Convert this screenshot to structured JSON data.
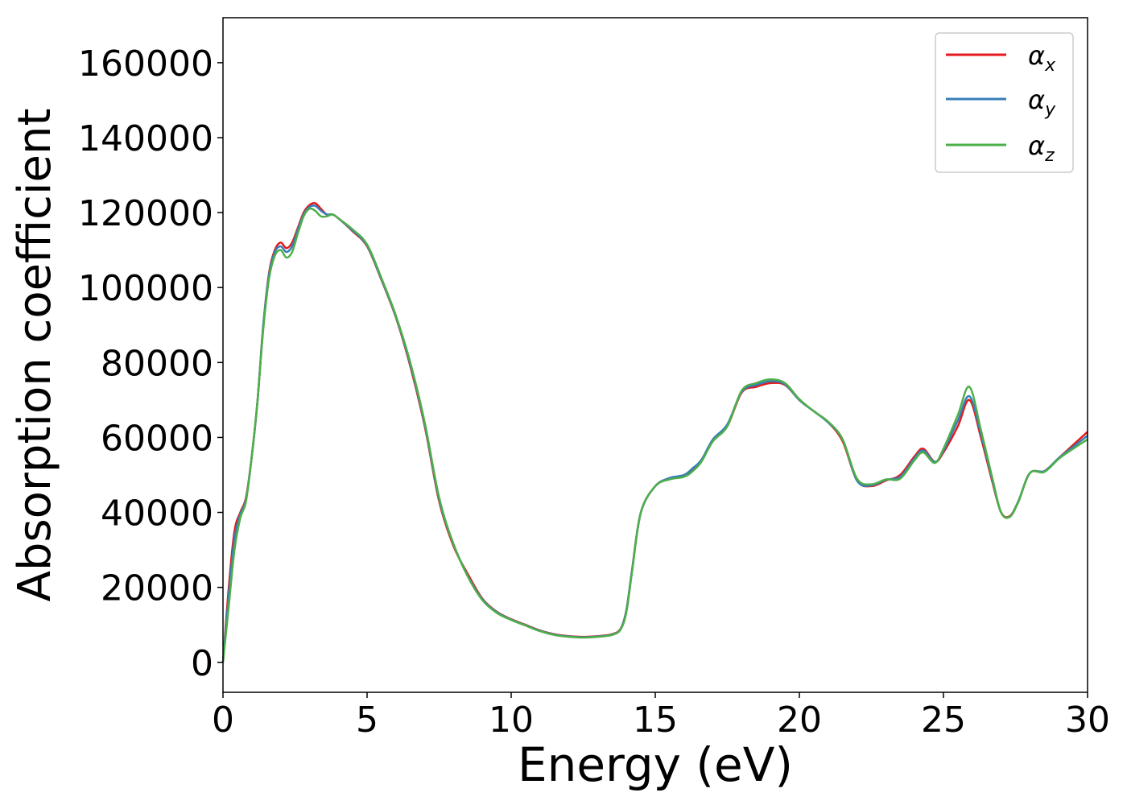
{
  "chart_data": {
    "type": "line",
    "title": "",
    "xlabel": "Energy (eV)",
    "ylabel": "Absorption coefficient",
    "xlim": [
      0,
      30
    ],
    "ylim": [
      -8000,
      172000
    ],
    "xticks": [
      0,
      5,
      10,
      15,
      20,
      25,
      30
    ],
    "yticks": [
      0,
      20000,
      40000,
      60000,
      80000,
      100000,
      120000,
      140000,
      160000
    ],
    "grid": false,
    "legend_position": "top-right",
    "series": [
      {
        "name": "α_x",
        "color": "#e41a1c",
        "x": [
          0,
          0.2,
          0.4,
          0.6,
          0.8,
          1.0,
          1.2,
          1.4,
          1.6,
          1.8,
          2.0,
          2.2,
          2.4,
          2.6,
          2.8,
          3.0,
          3.2,
          3.4,
          3.6,
          3.8,
          4.0,
          4.5,
          5.0,
          5.5,
          6.0,
          6.5,
          7.0,
          7.5,
          8.0,
          8.5,
          9.0,
          9.5,
          10.0,
          10.5,
          11.0,
          11.5,
          12.0,
          12.5,
          13.0,
          13.5,
          13.8,
          14.0,
          14.2,
          14.5,
          15.0,
          15.5,
          16.0,
          16.3,
          16.6,
          17.0,
          17.5,
          18.0,
          18.5,
          19.0,
          19.5,
          20.0,
          20.5,
          21.0,
          21.5,
          22.0,
          22.5,
          23.0,
          23.5,
          24.0,
          24.3,
          24.7,
          25.0,
          25.5,
          25.9,
          26.3,
          26.7,
          27.0,
          27.3,
          27.6,
          28.0,
          28.5,
          29.0,
          29.5,
          30.0
        ],
        "y": [
          0,
          20000,
          35000,
          40000,
          44000,
          55000,
          70000,
          90000,
          104000,
          110000,
          112000,
          110500,
          112000,
          116000,
          120000,
          122000,
          122500,
          121000,
          119500,
          119500,
          118500,
          115000,
          111000,
          102000,
          92000,
          79000,
          63000,
          43000,
          31000,
          23500,
          17000,
          13500,
          11500,
          10000,
          8500,
          7500,
          7000,
          6800,
          7000,
          7500,
          9000,
          14000,
          25000,
          40000,
          47000,
          49000,
          50000,
          51500,
          54000,
          59000,
          63000,
          72000,
          73500,
          74500,
          74000,
          70000,
          67000,
          64000,
          59000,
          48500,
          47000,
          48500,
          50000,
          55000,
          57000,
          53500,
          56000,
          63000,
          70000,
          60000,
          48000,
          40000,
          39000,
          43000,
          50500,
          51000,
          54500,
          58000,
          61500
        ]
      },
      {
        "name": "α_y",
        "color": "#377eb8",
        "x": [
          0,
          0.2,
          0.4,
          0.6,
          0.8,
          1.0,
          1.2,
          1.4,
          1.6,
          1.8,
          2.0,
          2.2,
          2.4,
          2.6,
          2.8,
          3.0,
          3.2,
          3.4,
          3.6,
          3.8,
          4.0,
          4.5,
          5.0,
          5.5,
          6.0,
          6.5,
          7.0,
          7.5,
          8.0,
          8.5,
          9.0,
          9.5,
          10.0,
          10.5,
          11.0,
          11.5,
          12.0,
          12.5,
          13.0,
          13.5,
          13.8,
          14.0,
          14.2,
          14.5,
          15.0,
          15.5,
          16.0,
          16.3,
          16.6,
          17.0,
          17.5,
          18.0,
          18.5,
          19.0,
          19.5,
          20.0,
          20.5,
          21.0,
          21.5,
          22.0,
          22.5,
          23.0,
          23.5,
          24.0,
          24.3,
          24.7,
          25.0,
          25.5,
          25.9,
          26.3,
          26.7,
          27.0,
          27.3,
          27.6,
          28.0,
          28.5,
          29.0,
          29.5,
          30.0
        ],
        "y": [
          0,
          18000,
          33000,
          39500,
          43500,
          55000,
          70000,
          90000,
          103500,
          109500,
          111000,
          109500,
          111000,
          115500,
          119500,
          121500,
          121800,
          120500,
          119500,
          119500,
          118500,
          115200,
          111200,
          102200,
          92200,
          79500,
          63500,
          43500,
          31500,
          23000,
          16800,
          13400,
          11400,
          9900,
          8400,
          7400,
          6900,
          6700,
          6900,
          7400,
          8900,
          14000,
          25000,
          40000,
          47000,
          49200,
          50000,
          51800,
          54000,
          59500,
          63500,
          72200,
          74000,
          75000,
          74200,
          70000,
          67000,
          64000,
          59500,
          48500,
          47200,
          48700,
          49500,
          54500,
          56500,
          53500,
          56500,
          64500,
          71000,
          61000,
          48500,
          40000,
          38800,
          43000,
          50500,
          51000,
          54500,
          57500,
          60500
        ]
      },
      {
        "name": "α_z",
        "color": "#4daf4a",
        "x": [
          0,
          0.2,
          0.4,
          0.6,
          0.8,
          1.0,
          1.2,
          1.4,
          1.6,
          1.8,
          2.0,
          2.2,
          2.4,
          2.6,
          2.8,
          3.0,
          3.2,
          3.4,
          3.6,
          3.8,
          4.0,
          4.5,
          5.0,
          5.5,
          6.0,
          6.5,
          7.0,
          7.5,
          8.0,
          8.5,
          9.0,
          9.5,
          10.0,
          10.5,
          11.0,
          11.5,
          12.0,
          12.5,
          13.0,
          13.5,
          13.8,
          14.0,
          14.2,
          14.5,
          15.0,
          15.5,
          16.0,
          16.3,
          16.6,
          17.0,
          17.5,
          18.0,
          18.5,
          19.0,
          19.5,
          20.0,
          20.5,
          21.0,
          21.5,
          22.0,
          22.5,
          23.0,
          23.5,
          24.0,
          24.3,
          24.7,
          25.0,
          25.5,
          25.9,
          26.3,
          26.7,
          27.0,
          27.3,
          27.6,
          28.0,
          28.5,
          29.0,
          29.5,
          30.0
        ],
        "y": [
          0,
          15000,
          30000,
          38500,
          43000,
          55000,
          70000,
          89000,
          102500,
          108500,
          110000,
          108000,
          109500,
          114500,
          119000,
          121000,
          120500,
          119000,
          119000,
          119500,
          118500,
          115500,
          111500,
          102500,
          92500,
          80000,
          64000,
          44000,
          31500,
          22800,
          16600,
          13200,
          11300,
          9800,
          8300,
          7300,
          6800,
          6600,
          6800,
          7300,
          8800,
          13500,
          24500,
          40000,
          47000,
          48800,
          49500,
          51000,
          53500,
          59000,
          63000,
          72500,
          74500,
          75500,
          74500,
          70200,
          67000,
          64200,
          59500,
          49000,
          47500,
          48800,
          49000,
          54000,
          56000,
          53200,
          57000,
          66000,
          73500,
          62000,
          49000,
          40000,
          38800,
          42800,
          50500,
          50800,
          54300,
          57000,
          59500
        ]
      }
    ]
  },
  "legend": [
    {
      "base": "α",
      "sub": "x"
    },
    {
      "base": "α",
      "sub": "y"
    },
    {
      "base": "α",
      "sub": "z"
    }
  ]
}
